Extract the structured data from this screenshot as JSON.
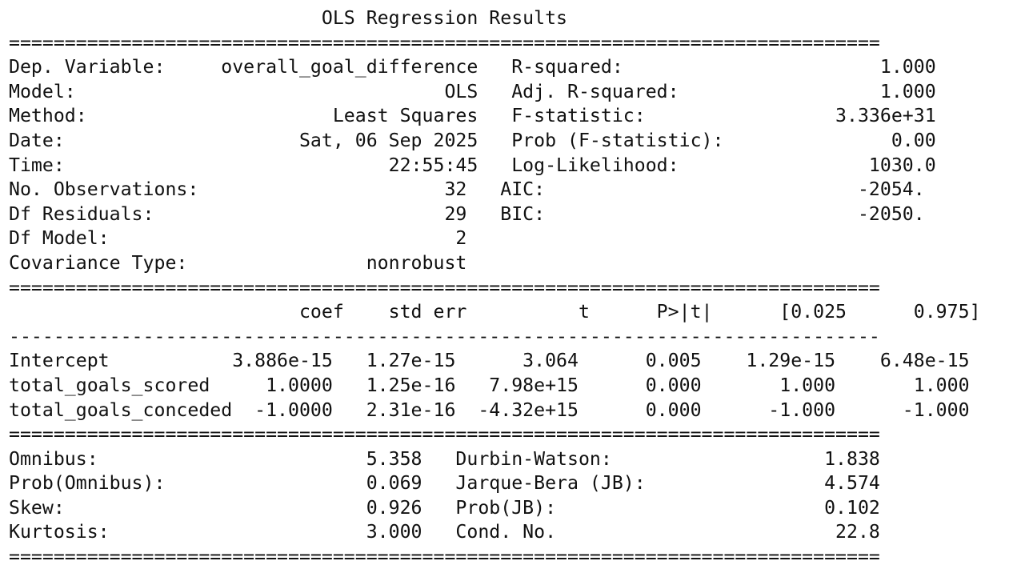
{
  "summary": {
    "title": "OLS Regression Results",
    "lines": [
      "                            OLS Regression Results                            ",
      "==============================================================================",
      "Dep. Variable:     overall_goal_difference   R-squared:                       1.000",
      "Model:                                 OLS   Adj. R-squared:                  1.000",
      "Method:                      Least Squares   F-statistic:                 3.336e+31",
      "Date:                     Sat, 06 Sep 2025   Prob (F-statistic):               0.00",
      "Time:                             22:55:45   Log-Likelihood:                 1030.0",
      "No. Observations:                      32   AIC:                            -2054.",
      "Df Residuals:                          29   BIC:                            -2050.",
      "Df Model:                               2                                         ",
      "Covariance Type:                nonrobust                                         ",
      "==============================================================================",
      "                          coef    std err          t      P>|t|      [0.025      0.975]",
      "------------------------------------------------------------------------------",
      "Intercept           3.886e-15   1.27e-15      3.064      0.005    1.29e-15    6.48e-15",
      "total_goals_scored     1.0000   1.25e-16   7.98e+15      0.000       1.000       1.000",
      "total_goals_conceded  -1.0000   2.31e-16  -4.32e+15      0.000      -1.000      -1.000",
      "==============================================================================",
      "Omnibus:                        5.358   Durbin-Watson:                   1.838",
      "Prob(Omnibus):                  0.069   Jarque-Bera (JB):                4.574",
      "Skew:                           0.926   Prob(JB):                        0.102",
      "Kurtosis:                       3.000   Cond. No.                         22.8",
      "=============================================================================="
    ]
  }
}
